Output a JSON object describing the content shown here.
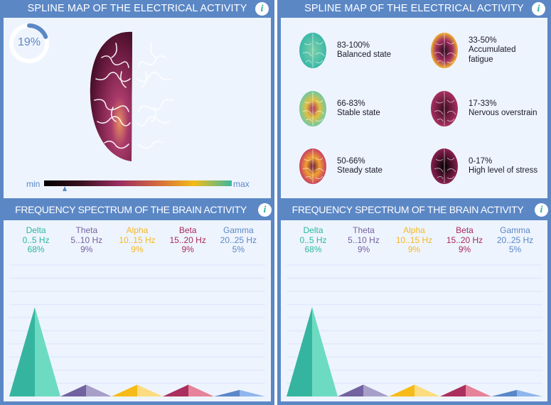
{
  "left": {
    "title": "SPLINE MAP OF THE ELECTRICAL ACTIVITY",
    "progress_label": "19%",
    "progress": 19,
    "scale_min": "min",
    "scale_max": "max",
    "scale_marker": 0.11
  },
  "right": {
    "title": "SPLINE MAP OF THE ELECTRICAL ACTIVITY",
    "legend": [
      {
        "range": "83-100%",
        "label": "Balanced state"
      },
      {
        "range": "33-50%",
        "label": "Accumulated fatigue"
      },
      {
        "range": "66-83%",
        "label": "Stable state"
      },
      {
        "range": "17-33%",
        "label": "Nervous overstrain"
      },
      {
        "range": "50-66%",
        "label": "Steady state"
      },
      {
        "range": "0-17%",
        "label": "High level of stress"
      }
    ]
  },
  "spectrum": {
    "title": "FREQUENCY SPECTRUM OF THE BRAIN ACTIVITY",
    "bands": [
      {
        "name": "Delta",
        "range": "0..5 Hz",
        "pct": "68%",
        "value": 68,
        "color": "#2ab8a0",
        "dark": "#35b5a0",
        "light": "#6ddbc1"
      },
      {
        "name": "Theta",
        "range": "5..10 Hz",
        "pct": "9%",
        "value": 9,
        "color": "#7560a0",
        "dark": "#7262a0",
        "light": "#a79fc8"
      },
      {
        "name": "Alpha",
        "range": "10..15 Hz",
        "pct": "9%",
        "value": 9,
        "color": "#f5b820",
        "dark": "#f6bb18",
        "light": "#fddc80"
      },
      {
        "name": "Beta",
        "range": "15..20 Hz",
        "pct": "9%",
        "value": 9,
        "color": "#a82a5c",
        "dark": "#aa2f5e",
        "light": "#e68299"
      },
      {
        "name": "Gamma",
        "range": "20..25 Hz",
        "pct": "5%",
        "value": 5,
        "color": "#5b87c5",
        "dark": "#5a88c8",
        "light": "#8fb5ec"
      }
    ]
  },
  "chart_data": {
    "type": "area",
    "categories": [
      "Delta",
      "Theta",
      "Alpha",
      "Beta",
      "Gamma"
    ],
    "values": [
      68,
      9,
      9,
      9,
      5
    ],
    "ylim": [
      0,
      100
    ]
  }
}
